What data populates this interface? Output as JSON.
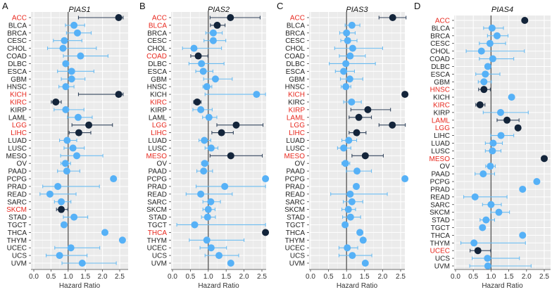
{
  "colors": {
    "significant_point": "#13243a",
    "nonsignificant_point": "#56b1f7",
    "significant_label": "#e8281e",
    "label": "#222222",
    "panel_bg": "#ebebeb",
    "reference_line": "#555555"
  },
  "chart_data": [
    {
      "panel": "A",
      "type": "forest",
      "title": "PIAS1",
      "xlabel": "Hazard Ratio",
      "xticks": [
        "0.0",
        "0.5",
        "1.0",
        "1.5",
        "2.0",
        "2.5"
      ],
      "xlim": [
        0,
        2.7
      ],
      "reference_line": 1.0,
      "grid": true,
      "categories": [
        "ACC",
        "BLCA",
        "BRCA",
        "CESC",
        "CHOL",
        "COAD",
        "DLBC",
        "ESCA",
        "GBM",
        "HNSC",
        "KICH",
        "KIRC",
        "KIRP",
        "LAML",
        "LGG",
        "LIHC",
        "LUAD",
        "LUSC",
        "MESO",
        "OV",
        "PAAD",
        "PCPG",
        "PRAD",
        "READ",
        "SARC",
        "SKCM",
        "STAD",
        "TGCT",
        "THCA",
        "THYM",
        "UCEC",
        "UCS",
        "UVM"
      ],
      "hr": [
        2.47,
        1.17,
        1.27,
        0.89,
        0.85,
        1.36,
        0.93,
        1.1,
        1.1,
        0.93,
        2.47,
        0.64,
        0.93,
        1.29,
        1.6,
        1.31,
        0.97,
        1.14,
        1.25,
        0.92,
        0.96,
        2.32,
        0.7,
        0.47,
        0.8,
        0.8,
        1.17,
        0.88,
        2.07,
        2.58,
        1.08,
        0.75,
        1.41
      ],
      "ci_low": [
        1.3,
        0.92,
        0.95,
        0.57,
        0.4,
        0.86,
        null,
        0.69,
        0.8,
        0.73,
        1.3,
        0.51,
        0.59,
        0.98,
        1.11,
        1.03,
        0.75,
        0.88,
        0.78,
        0.79,
        0.69,
        null,
        0.26,
        0.18,
        0.6,
        0.66,
        0.86,
        null,
        null,
        null,
        0.61,
        0.36,
        0.82
      ],
      "ci_high": [
        2.6,
        1.48,
        1.67,
        1.4,
        1.82,
        2.16,
        null,
        1.75,
        1.49,
        1.17,
        2.6,
        0.8,
        1.46,
        1.7,
        2.29,
        1.66,
        1.25,
        1.47,
        2.01,
        1.07,
        1.34,
        null,
        1.91,
        1.23,
        1.08,
        0.99,
        1.57,
        null,
        null,
        null,
        1.92,
        1.55,
        2.4
      ],
      "significant": [
        true,
        false,
        false,
        false,
        false,
        false,
        false,
        false,
        false,
        false,
        true,
        true,
        false,
        false,
        true,
        true,
        false,
        false,
        false,
        false,
        false,
        false,
        false,
        false,
        false,
        true,
        false,
        false,
        false,
        false,
        false,
        false,
        false
      ]
    },
    {
      "panel": "B",
      "type": "forest",
      "title": "PIAS2",
      "xlabel": "Hazard Ratio",
      "xticks": [
        "0.0",
        "0.5",
        "1.0",
        "1.5",
        "2.0",
        "2.5"
      ],
      "xlim": [
        0,
        2.65
      ],
      "reference_line": 1.0,
      "grid": true,
      "categories": [
        "ACC",
        "BLCA",
        "BRCA",
        "CESC",
        "CHOL",
        "COAD",
        "DLBC",
        "ESCA",
        "GBM",
        "HNSC",
        "KICH",
        "KIRC",
        "KIRP",
        "LAML",
        "LGG",
        "LIHC",
        "LUAD",
        "LUSC",
        "MESO",
        "OV",
        "PAAD",
        "PCPG",
        "PRAD",
        "READ",
        "SARC",
        "SKCM",
        "STAD",
        "TGCT",
        "THCA",
        "THYM",
        "UCEC",
        "UCS",
        "UVM"
      ],
      "hr": [
        1.62,
        1.25,
        1.14,
        1.14,
        0.6,
        0.72,
        0.81,
        0.86,
        1.2,
        0.96,
        2.35,
        0.69,
        0.79,
        1.02,
        1.78,
        1.37,
        0.89,
        1.08,
        1.63,
        0.9,
        0.87,
        2.6,
        1.46,
        0.79,
        1.07,
        1.0,
        0.98,
        0.62,
        2.6,
        0.96,
        1.08,
        1.3,
        1.63
      ],
      "ci_low": [
        1.05,
        1.06,
        0.93,
        0.88,
        0.28,
        0.51,
        0.46,
        0.65,
        0.87,
        0.85,
        0.91,
        0.59,
        0.57,
        0.84,
        1.24,
        1.1,
        0.74,
        0.91,
        1.05,
        0.81,
        0.68,
        null,
        0.66,
        0.38,
        0.85,
        0.85,
        0.81,
        0.12,
        null,
        0.47,
        0.77,
        0.91,
        null
      ],
      "ci_high": [
        2.45,
        1.47,
        1.39,
        1.49,
        1.37,
        0.99,
        1.44,
        1.13,
        1.67,
        1.1,
        2.6,
        0.8,
        1.11,
        1.24,
        2.53,
        1.7,
        1.07,
        1.27,
        2.51,
        1.0,
        1.12,
        null,
        2.6,
        1.67,
        1.34,
        1.19,
        1.2,
        2.6,
        null,
        2.0,
        1.51,
        1.85,
        null
      ],
      "significant": [
        true,
        true,
        false,
        false,
        false,
        true,
        false,
        false,
        false,
        false,
        false,
        true,
        false,
        false,
        true,
        true,
        false,
        false,
        true,
        false,
        false,
        false,
        false,
        false,
        false,
        false,
        false,
        false,
        true,
        false,
        false,
        false,
        false
      ]
    },
    {
      "panel": "C",
      "type": "forest",
      "title": "PIAS3",
      "xlabel": "Hazard Ratio",
      "xticks": [
        "0.0",
        "0.5",
        "1.0",
        "1.5",
        "2.0",
        "2.5"
      ],
      "xlim": [
        0,
        2.7
      ],
      "reference_line": 1.0,
      "grid": true,
      "categories": [
        "ACC",
        "BLCA",
        "BRCA",
        "CESC",
        "CHOL",
        "COAD",
        "DLBC",
        "ESCA",
        "GBM",
        "HNSC",
        "KICH",
        "KIRC",
        "KIRP",
        "LAML",
        "LGG",
        "LIHC",
        "LUAD",
        "LUSC",
        "MESO",
        "OV",
        "PAAD",
        "PCPG",
        "PRAD",
        "READ",
        "SARC",
        "SKCM",
        "STAD",
        "TGCT",
        "THCA",
        "THYM",
        "UCEC",
        "UCS",
        "UVM"
      ],
      "hr": [
        2.28,
        1.15,
        1.0,
        1.03,
        1.17,
        1.1,
        0.98,
        0.92,
        1.09,
        0.98,
        2.62,
        1.14,
        1.59,
        1.34,
        2.27,
        1.28,
        1.06,
        0.92,
        1.52,
        0.97,
        1.29,
        2.62,
        1.27,
        1.1,
        1.15,
        1.05,
        1.11,
        0.96,
        1.37,
        1.46,
        1.02,
        1.16,
        1.52
      ],
      "ci_low": [
        1.9,
        0.96,
        0.81,
        0.84,
        0.67,
        0.8,
        0.52,
        0.69,
        0.83,
        0.85,
        null,
        0.92,
        1.12,
        1.07,
        1.9,
        1.07,
        0.87,
        0.75,
        1.15,
        0.87,
        0.99,
        null,
        null,
        0.56,
        0.91,
        0.87,
        0.89,
        null,
        null,
        null,
        0.79,
        0.79,
        null
      ],
      "ci_high": [
        2.65,
        1.37,
        1.24,
        1.29,
        2.0,
        1.52,
        1.8,
        1.22,
        1.45,
        1.12,
        null,
        1.41,
        2.22,
        1.69,
        2.63,
        1.54,
        1.28,
        1.12,
        2.02,
        1.09,
        1.69,
        null,
        null,
        2.13,
        1.45,
        1.25,
        1.39,
        null,
        null,
        null,
        1.31,
        1.7,
        null
      ],
      "significant": [
        true,
        false,
        false,
        false,
        false,
        false,
        false,
        false,
        false,
        false,
        true,
        false,
        true,
        true,
        true,
        true,
        false,
        false,
        true,
        false,
        false,
        false,
        false,
        false,
        false,
        false,
        false,
        false,
        false,
        false,
        false,
        false,
        false
      ]
    },
    {
      "panel": "D",
      "type": "forest",
      "title": "PIAS4",
      "xlabel": "Hazard Ratio",
      "xticks": [
        "0.0",
        "0.5",
        "1.0",
        "1.5",
        "2.0",
        "2.5"
      ],
      "xlim": [
        0,
        2.7
      ],
      "reference_line": 1.0,
      "grid": true,
      "categories": [
        "ACC",
        "BLCA",
        "BRCA",
        "CESC",
        "CHOL",
        "COAD",
        "DLBC",
        "ESCA",
        "GBM",
        "HNSC",
        "KICH",
        "KIRC",
        "KIRP",
        "LAML",
        "LGG",
        "LIHC",
        "LUAD",
        "LUSC",
        "MESO",
        "OV",
        "PAAD",
        "PCPG",
        "PRAD",
        "READ",
        "SARC",
        "SKCM",
        "STAD",
        "TGCT",
        "THCA",
        "THYM",
        "UCEC",
        "UCS",
        "UVM"
      ],
      "hr": [
        1.95,
        1.03,
        1.17,
        0.97,
        0.73,
        1.05,
        0.91,
        0.84,
        0.8,
        0.8,
        1.58,
        0.69,
        1.27,
        1.45,
        1.76,
        1.28,
        1.06,
        1.04,
        2.5,
        0.98,
        0.78,
        2.29,
        1.89,
        0.55,
        1.0,
        1.22,
        0.86,
        0.76,
        1.89,
        0.52,
        0.63,
        0.9,
        0.91
      ],
      "ci_low": [
        null,
        0.79,
        0.9,
        0.67,
        0.3,
        0.67,
        null,
        0.57,
        0.64,
        0.65,
        null,
        0.57,
        0.78,
        1.17,
        null,
        0.99,
        0.84,
        0.84,
        null,
        0.85,
        0.55,
        null,
        null,
        0.23,
        0.76,
        0.99,
        0.69,
        null,
        null,
        0.15,
        0.41,
        0.47,
        0.4
      ],
      "ci_high": [
        null,
        1.35,
        1.48,
        1.41,
        1.94,
        1.64,
        null,
        1.25,
        1.01,
        0.98,
        null,
        0.83,
        2.05,
        1.79,
        null,
        1.64,
        1.32,
        1.28,
        null,
        1.12,
        1.1,
        null,
        null,
        1.45,
        1.29,
        1.52,
        1.1,
        null,
        null,
        1.97,
        0.99,
        1.8,
        2.13
      ],
      "significant": [
        true,
        false,
        false,
        false,
        false,
        false,
        false,
        false,
        false,
        true,
        false,
        true,
        false,
        true,
        true,
        false,
        false,
        false,
        true,
        false,
        false,
        false,
        false,
        false,
        false,
        false,
        false,
        false,
        false,
        false,
        true,
        false,
        false
      ]
    }
  ]
}
